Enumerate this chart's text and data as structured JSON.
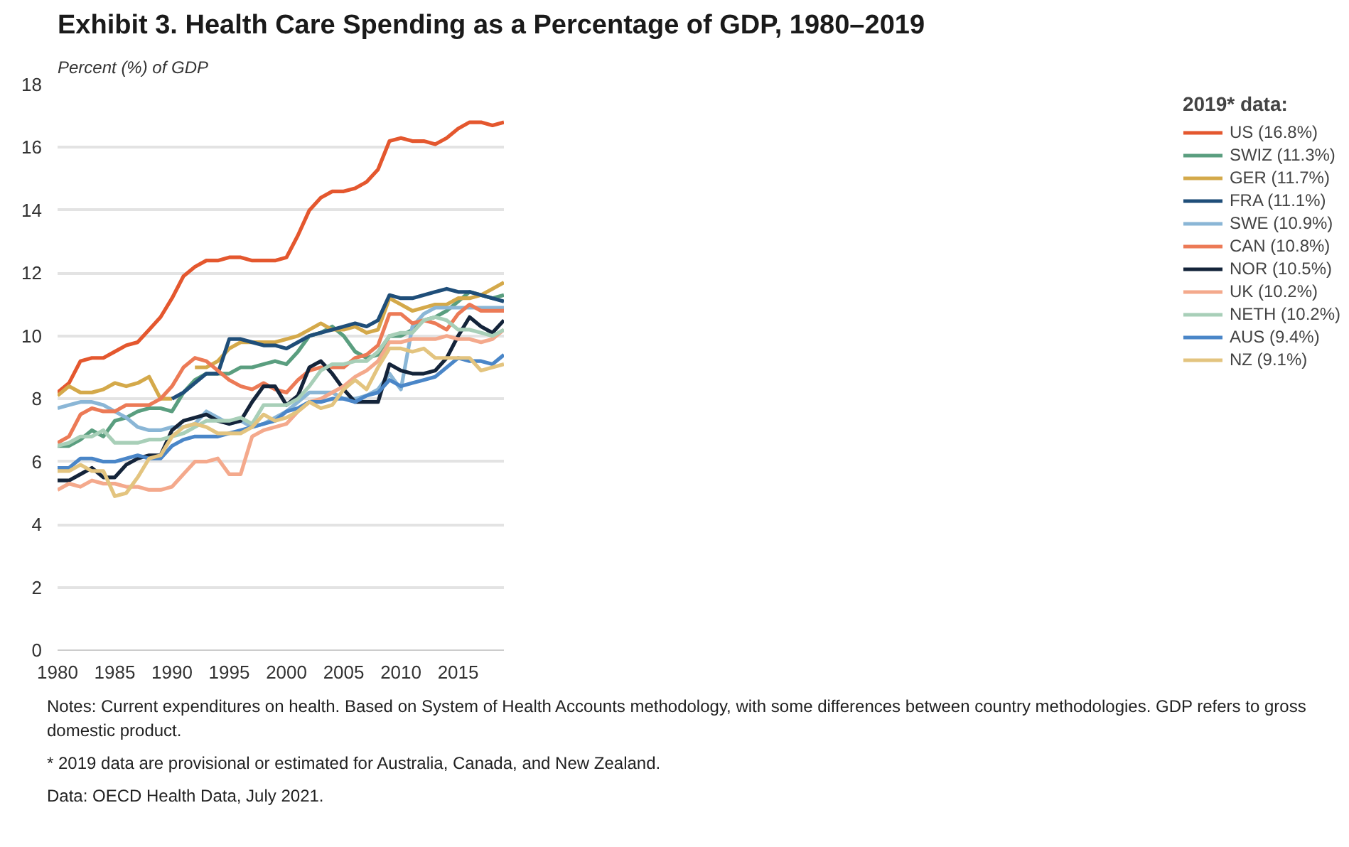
{
  "chart_data": {
    "type": "line",
    "title": "Exhibit 3. Health Care Spending as a Percentage of GDP, 1980–2019",
    "ylabel": "Percent (%) of GDP",
    "legend_title": "2019* data:",
    "x": [
      1980,
      1981,
      1982,
      1983,
      1984,
      1985,
      1986,
      1987,
      1988,
      1989,
      1990,
      1991,
      1992,
      1993,
      1994,
      1995,
      1996,
      1997,
      1998,
      1999,
      2000,
      2001,
      2002,
      2003,
      2004,
      2005,
      2006,
      2007,
      2008,
      2009,
      2010,
      2011,
      2012,
      2013,
      2014,
      2015,
      2016,
      2017,
      2018,
      2019
    ],
    "series": [
      {
        "name": "US (16.8%)",
        "color": "#e4572e",
        "values": [
          8.2,
          8.5,
          9.2,
          9.3,
          9.3,
          9.5,
          9.7,
          9.8,
          10.2,
          10.6,
          11.2,
          11.9,
          12.2,
          12.4,
          12.4,
          12.5,
          12.5,
          12.4,
          12.4,
          12.4,
          12.5,
          13.2,
          14.0,
          14.4,
          14.6,
          14.6,
          14.7,
          14.9,
          15.3,
          16.2,
          16.3,
          16.2,
          16.2,
          16.1,
          16.3,
          16.6,
          16.8,
          16.8,
          16.7,
          16.8
        ]
      },
      {
        "name": "SWIZ (11.3%)",
        "color": "#5a9e7f",
        "values": [
          6.5,
          6.5,
          6.7,
          7.0,
          6.8,
          7.3,
          7.4,
          7.6,
          7.7,
          7.7,
          7.6,
          8.2,
          8.6,
          8.8,
          8.8,
          8.8,
          9.0,
          9.0,
          9.1,
          9.2,
          9.1,
          9.5,
          10.0,
          10.1,
          10.3,
          10.0,
          9.5,
          9.3,
          9.4,
          10.0,
          10.0,
          10.2,
          10.5,
          10.6,
          10.8,
          11.1,
          11.4,
          11.3,
          11.2,
          11.3
        ]
      },
      {
        "name": "GER (11.7%)",
        "color": "#d4a94a",
        "values": [
          8.1,
          8.4,
          8.2,
          8.2,
          8.3,
          8.5,
          8.4,
          8.5,
          8.7,
          8.0,
          8.0,
          null,
          9.0,
          9.0,
          9.2,
          9.6,
          9.8,
          9.8,
          9.8,
          9.8,
          9.9,
          10.0,
          10.2,
          10.4,
          10.2,
          10.2,
          10.3,
          10.1,
          10.2,
          11.2,
          11.0,
          10.8,
          10.9,
          11.0,
          11.0,
          11.2,
          11.2,
          11.3,
          11.5,
          11.7
        ]
      },
      {
        "name": "FRA (11.1%)",
        "color": "#1f4e79",
        "values": [
          null,
          null,
          null,
          null,
          null,
          null,
          null,
          null,
          null,
          null,
          8.0,
          8.2,
          8.5,
          8.8,
          8.8,
          9.9,
          9.9,
          9.8,
          9.7,
          9.7,
          9.6,
          9.8,
          10.0,
          10.1,
          10.2,
          10.3,
          10.4,
          10.3,
          10.5,
          11.3,
          11.2,
          11.2,
          11.3,
          11.4,
          11.5,
          11.4,
          11.4,
          11.3,
          11.2,
          11.1
        ]
      },
      {
        "name": "SWE (10.9%)",
        "color": "#8ab6d6",
        "values": [
          7.7,
          7.8,
          7.9,
          7.9,
          7.8,
          7.6,
          7.4,
          7.1,
          7.0,
          7.0,
          7.1,
          7.1,
          7.2,
          7.6,
          7.4,
          7.2,
          7.3,
          7.1,
          7.2,
          7.4,
          7.6,
          7.9,
          8.2,
          8.2,
          8.2,
          8.0,
          8.0,
          8.1,
          8.3,
          8.8,
          8.3,
          10.3,
          10.7,
          10.9,
          10.9,
          10.9,
          10.9,
          10.9,
          10.9,
          10.9
        ]
      },
      {
        "name": "CAN (10.8%)",
        "color": "#ec7a56",
        "values": [
          6.6,
          6.8,
          7.5,
          7.7,
          7.6,
          7.6,
          7.8,
          7.8,
          7.8,
          8.0,
          8.4,
          9.0,
          9.3,
          9.2,
          8.9,
          8.6,
          8.4,
          8.3,
          8.5,
          8.3,
          8.2,
          8.6,
          8.9,
          9.0,
          9.0,
          9.0,
          9.3,
          9.4,
          9.7,
          10.7,
          10.7,
          10.4,
          10.5,
          10.4,
          10.2,
          10.7,
          11.0,
          10.8,
          10.8,
          10.8
        ]
      },
      {
        "name": "NOR (10.5%)",
        "color": "#14243a",
        "values": [
          5.4,
          5.4,
          5.6,
          5.8,
          5.5,
          5.5,
          5.9,
          6.1,
          6.2,
          6.2,
          7.0,
          7.3,
          7.4,
          7.5,
          7.3,
          7.2,
          7.3,
          7.9,
          8.4,
          8.4,
          7.8,
          8.1,
          9.0,
          9.2,
          8.8,
          8.3,
          7.9,
          7.9,
          7.9,
          9.1,
          8.9,
          8.8,
          8.8,
          8.9,
          9.3,
          10.0,
          10.6,
          10.3,
          10.1,
          10.5
        ]
      },
      {
        "name": "UK (10.2%)",
        "color": "#f4a98c",
        "values": [
          5.1,
          5.3,
          5.2,
          5.4,
          5.3,
          5.3,
          5.2,
          5.2,
          5.1,
          5.1,
          5.2,
          5.6,
          6.0,
          6.0,
          6.1,
          5.6,
          5.6,
          6.8,
          7.0,
          7.1,
          7.2,
          7.6,
          7.9,
          8.0,
          8.2,
          8.4,
          8.7,
          8.9,
          9.2,
          9.8,
          9.8,
          9.9,
          9.9,
          9.9,
          10.0,
          9.9,
          9.9,
          9.8,
          9.9,
          10.2
        ]
      },
      {
        "name": "NETH (10.2%)",
        "color": "#a8cfb8",
        "values": [
          6.5,
          6.6,
          6.8,
          6.8,
          7.0,
          6.6,
          6.6,
          6.6,
          6.7,
          6.7,
          6.8,
          6.9,
          7.1,
          7.3,
          7.3,
          7.3,
          7.4,
          7.2,
          7.8,
          7.8,
          7.8,
          8.0,
          8.4,
          8.9,
          9.1,
          9.1,
          9.2,
          9.2,
          9.5,
          10.0,
          10.1,
          10.1,
          10.5,
          10.6,
          10.5,
          10.2,
          10.2,
          10.1,
          10.0,
          10.2
        ]
      },
      {
        "name": "AUS (9.4%)",
        "color": "#4a86c8",
        "values": [
          5.8,
          5.8,
          6.1,
          6.1,
          6.0,
          6.0,
          6.1,
          6.2,
          6.1,
          6.1,
          6.5,
          6.7,
          6.8,
          6.8,
          6.8,
          6.9,
          7.0,
          7.1,
          7.2,
          7.3,
          7.6,
          7.7,
          7.9,
          7.9,
          8.0,
          8.0,
          7.9,
          8.1,
          8.2,
          8.6,
          8.4,
          8.5,
          8.6,
          8.7,
          9.0,
          9.3,
          9.2,
          9.2,
          9.1,
          9.4
        ]
      },
      {
        "name": "NZ (9.1%)",
        "color": "#e3c47f",
        "values": [
          5.7,
          5.7,
          5.9,
          5.7,
          5.7,
          4.9,
          5.0,
          5.5,
          6.1,
          6.2,
          6.8,
          7.1,
          7.2,
          7.1,
          6.9,
          6.9,
          6.9,
          7.1,
          7.5,
          7.3,
          7.4,
          7.6,
          7.9,
          7.7,
          7.8,
          8.3,
          8.6,
          8.3,
          9.0,
          9.6,
          9.6,
          9.5,
          9.6,
          9.3,
          9.3,
          9.3,
          9.3,
          8.9,
          9.0,
          9.1
        ]
      }
    ],
    "xlim": [
      1980,
      2019
    ],
    "xticks": [
      1980,
      1985,
      1990,
      1995,
      2000,
      2005,
      2010,
      2015
    ],
    "ylim": [
      0,
      18
    ],
    "yticks": [
      0,
      2,
      4,
      6,
      8,
      10,
      12,
      14,
      16,
      18
    ],
    "grid": "y",
    "legend": "right",
    "line_style": "solid",
    "marker": "none",
    "annotations": [
      "Notes: Current expenditures on health. Based on System of Health Accounts methodology, with some differences between country methodologies. GDP refers to gross domestic product.",
      "* 2019 data are provisional or estimated for Australia, Canada, and New Zealand.",
      "Data: OECD Health Data, July 2021."
    ]
  }
}
